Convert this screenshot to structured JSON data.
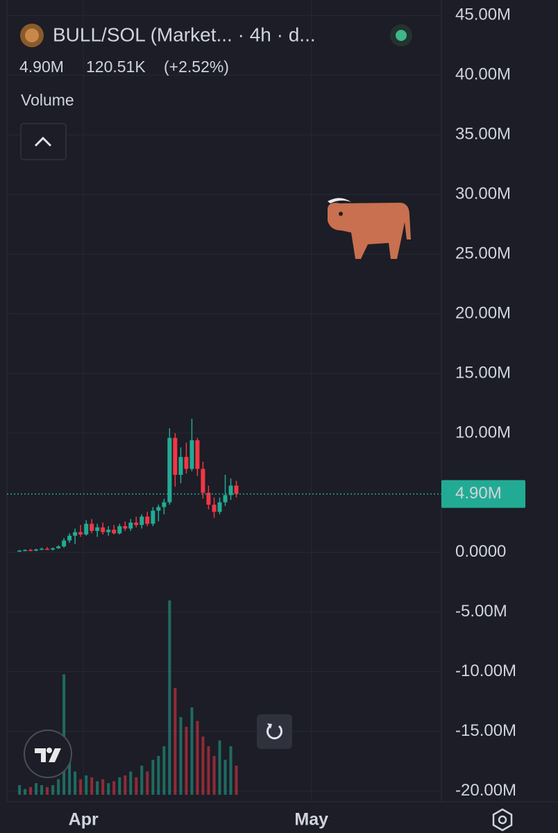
{
  "chart_data": {
    "type": "candlestick",
    "title": "BULL/SOL (Market... · 4h · d...",
    "header_price": "4.90M",
    "header_change": "120.51K",
    "header_change_pct": "(+2.52%)",
    "volume_label": "Volume",
    "up_color": "#22ab94",
    "down_color": "#f23645",
    "grid": true,
    "ylim": [
      46.3,
      -20.9
    ],
    "yticks": [
      {
        "value": 45,
        "label": "45.00M"
      },
      {
        "value": 40,
        "label": "40.00M"
      },
      {
        "value": 35,
        "label": "35.00M"
      },
      {
        "value": 30,
        "label": "30.00M"
      },
      {
        "value": 25,
        "label": "25.00M"
      },
      {
        "value": 20,
        "label": "20.00M"
      },
      {
        "value": 15,
        "label": "15.00M"
      },
      {
        "value": 10,
        "label": "10.00M"
      },
      {
        "value": 0,
        "label": "0.0000"
      },
      {
        "value": -5,
        "label": "-5.00M"
      },
      {
        "value": -10,
        "label": "-10.00M"
      },
      {
        "value": -15,
        "label": "-15.00M"
      },
      {
        "value": -20,
        "label": "-20.00M"
      }
    ],
    "xlim": [
      -10.06,
      47.1
    ],
    "xticks": [
      {
        "value": 0,
        "label": "Apr"
      },
      {
        "value": 30,
        "label": "May"
      }
    ],
    "last_price": 4.9,
    "last_price_label": "4.90M",
    "x": [
      -8.41,
      -7.68,
      -6.95,
      -6.22,
      -5.49,
      -4.76,
      -4.02,
      -3.29,
      -2.56,
      -1.83,
      -1.1,
      -0.37,
      0.37,
      1.1,
      1.83,
      2.56,
      3.29,
      4.02,
      4.76,
      5.49,
      6.22,
      6.95,
      7.68,
      8.41,
      9.15,
      9.88,
      10.61,
      11.34,
      12.07,
      12.81,
      13.54,
      14.27,
      15.0,
      15.73,
      16.46,
      17.2,
      17.93,
      18.66,
      19.39,
      20.12
    ],
    "open": [
      0.1,
      0.15,
      0.2,
      0.15,
      0.25,
      0.3,
      0.25,
      0.35,
      0.5,
      1.0,
      1.4,
      1.7,
      1.5,
      2.4,
      1.8,
      2.1,
      1.7,
      1.9,
      1.6,
      2.2,
      2.0,
      2.5,
      2.3,
      3.0,
      2.4,
      3.5,
      3.8,
      4.2,
      9.6,
      6.5,
      8.0,
      7.0,
      9.4,
      7.0,
      5.0,
      4.0,
      3.4,
      4.2,
      4.8,
      5.6
    ],
    "high": [
      0.2,
      0.25,
      0.3,
      0.3,
      0.4,
      0.45,
      0.4,
      0.6,
      1.2,
      1.6,
      2.0,
      2.3,
      2.7,
      2.8,
      2.4,
      2.5,
      2.2,
      2.3,
      2.4,
      2.6,
      2.8,
      3.0,
      3.2,
      3.4,
      3.8,
      4.0,
      4.5,
      10.4,
      10.0,
      8.8,
      9.2,
      11.2,
      9.6,
      7.6,
      5.6,
      4.6,
      4.6,
      6.5,
      6.2,
      6.0
    ],
    "low": [
      0.05,
      0.1,
      0.1,
      0.1,
      0.2,
      0.2,
      0.15,
      0.3,
      0.4,
      0.8,
      0.7,
      1.3,
      1.4,
      1.6,
      1.3,
      1.5,
      1.4,
      1.5,
      1.5,
      1.8,
      1.8,
      2.1,
      2.0,
      2.2,
      2.2,
      2.6,
      3.2,
      4.0,
      5.5,
      5.8,
      6.6,
      6.8,
      6.4,
      4.5,
      3.6,
      2.9,
      3.2,
      3.9,
      4.4,
      4.6
    ],
    "close": [
      0.15,
      0.2,
      0.15,
      0.25,
      0.3,
      0.25,
      0.35,
      0.5,
      1.0,
      1.4,
      1.7,
      1.5,
      2.4,
      1.8,
      2.1,
      1.7,
      1.9,
      1.6,
      2.2,
      2.0,
      2.5,
      2.3,
      3.0,
      2.4,
      3.5,
      3.8,
      4.2,
      9.6,
      6.5,
      8.0,
      7.0,
      9.4,
      7.0,
      5.0,
      4.0,
      3.4,
      4.2,
      4.8,
      5.6,
      4.9
    ],
    "volume": [
      5,
      3,
      4,
      6,
      5,
      4,
      5,
      8,
      62,
      20,
      12,
      8,
      10,
      9,
      7,
      8,
      6,
      7,
      9,
      10,
      12,
      9,
      15,
      12,
      18,
      20,
      25,
      100,
      55,
      40,
      35,
      45,
      38,
      30,
      25,
      20,
      28,
      18,
      25,
      15
    ],
    "volume_lim": [
      0,
      100
    ]
  }
}
